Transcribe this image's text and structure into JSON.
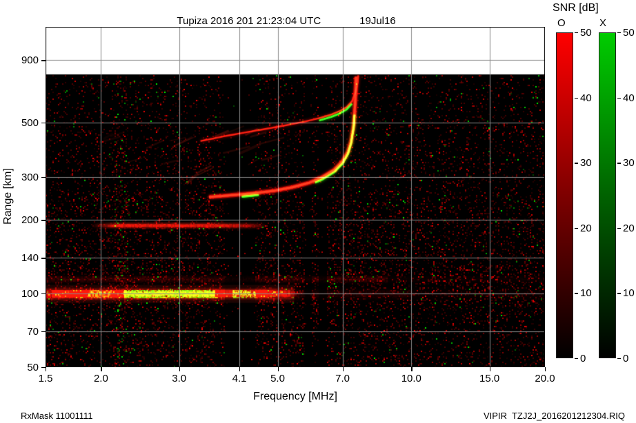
{
  "header": {
    "title": "Tupiza 2016 201 21:23:04 UTC",
    "date": "19Jul16"
  },
  "footer": {
    "left": "RxMask 11001111",
    "right": "VIPIR  TZJ2J_2016201212304.RIQ"
  },
  "colorbar_panel": {
    "label": "SNR [dB]",
    "o_label": "O",
    "x_label": "X",
    "ticks": [
      "50",
      "40",
      "30",
      "20",
      "10",
      "0"
    ],
    "min_db": 0,
    "max_db": 50,
    "o_color": "#ff0000",
    "x_color": "#00cc00"
  },
  "chart_data": {
    "type": "heatmap",
    "title": "Tupiza 2016 201 21:23:04 UTC 19Jul16",
    "xlabel": "Frequency [MHz]",
    "ylabel": "Range [km]",
    "x_scale": "log",
    "y_scale": "log",
    "x_range_mhz": [
      1.5,
      20.0
    ],
    "y_range_km": [
      50,
      1230
    ],
    "x_ticks": [
      {
        "v": 1.5,
        "label": "1.5"
      },
      {
        "v": 2.0,
        "label": "2.0"
      },
      {
        "v": 3.0,
        "label": "3.0"
      },
      {
        "v": 4.1,
        "label": "4.1"
      },
      {
        "v": 5.0,
        "label": "5.0"
      },
      {
        "v": 7.0,
        "label": "7.0"
      },
      {
        "v": 10.0,
        "label": "10.0"
      },
      {
        "v": 15.0,
        "label": "15.0"
      },
      {
        "v": 20.0,
        "label": "20.0"
      }
    ],
    "y_ticks": [
      {
        "v": 900,
        "label": "900"
      },
      {
        "v": 500,
        "label": "500"
      },
      {
        "v": 300,
        "label": "300"
      },
      {
        "v": 200,
        "label": "200"
      },
      {
        "v": 140,
        "label": "140"
      },
      {
        "v": 100,
        "label": "100"
      },
      {
        "v": 70,
        "label": "70"
      },
      {
        "v": 50,
        "label": "50"
      }
    ],
    "grid": true,
    "background": "#000000",
    "blank_above_km": 790,
    "rfi_masked_bands_mhz": [
      [
        3.8,
        4.45
      ],
      [
        5.72,
        5.94
      ],
      [
        6.18,
        6.44
      ]
    ],
    "e_layer": {
      "center_km": 100,
      "span_mhz": [
        1.5,
        5.5
      ],
      "x_mode_green_mhz": [
        2.25,
        3.6
      ],
      "secondary_green_mhz": [
        3.95,
        4.45
      ],
      "upper_band_km": 115
    },
    "sporadic_band": {
      "center_km": 190,
      "span_mhz": [
        1.9,
        4.75
      ]
    },
    "diffuse_echo_region": {
      "freq_mhz": [
        2.8,
        4.9
      ],
      "range_km": [
        270,
        460
      ]
    },
    "f_trace_lower_mhz_km": [
      [
        3.5,
        248
      ],
      [
        3.9,
        252
      ],
      [
        4.4,
        257
      ],
      [
        4.9,
        263
      ],
      [
        5.4,
        272
      ],
      [
        5.9,
        284
      ],
      [
        6.3,
        299
      ],
      [
        6.7,
        320
      ],
      [
        7.0,
        347
      ],
      [
        7.2,
        380
      ],
      [
        7.32,
        420
      ],
      [
        7.42,
        490
      ],
      [
        7.47,
        590
      ],
      [
        7.5,
        700
      ],
      [
        7.51,
        770
      ]
    ],
    "f_trace_upper_mhz_km": [
      [
        3.35,
        420
      ],
      [
        3.8,
        440
      ],
      [
        4.3,
        458
      ],
      [
        4.8,
        474
      ],
      [
        5.3,
        490
      ],
      [
        5.8,
        506
      ],
      [
        6.2,
        521
      ],
      [
        6.6,
        539
      ],
      [
        6.9,
        557
      ],
      [
        7.15,
        578
      ],
      [
        7.35,
        610
      ],
      [
        7.48,
        660
      ],
      [
        7.56,
        720
      ],
      [
        7.6,
        780
      ]
    ],
    "lower_green_segments_mhz": [
      [
        4.15,
        4.55
      ],
      [
        6.05,
        7.45
      ]
    ],
    "upper_green_segments_mhz": [
      [
        6.15,
        7.35
      ]
    ],
    "fof2_mhz_approx": 7.5
  }
}
